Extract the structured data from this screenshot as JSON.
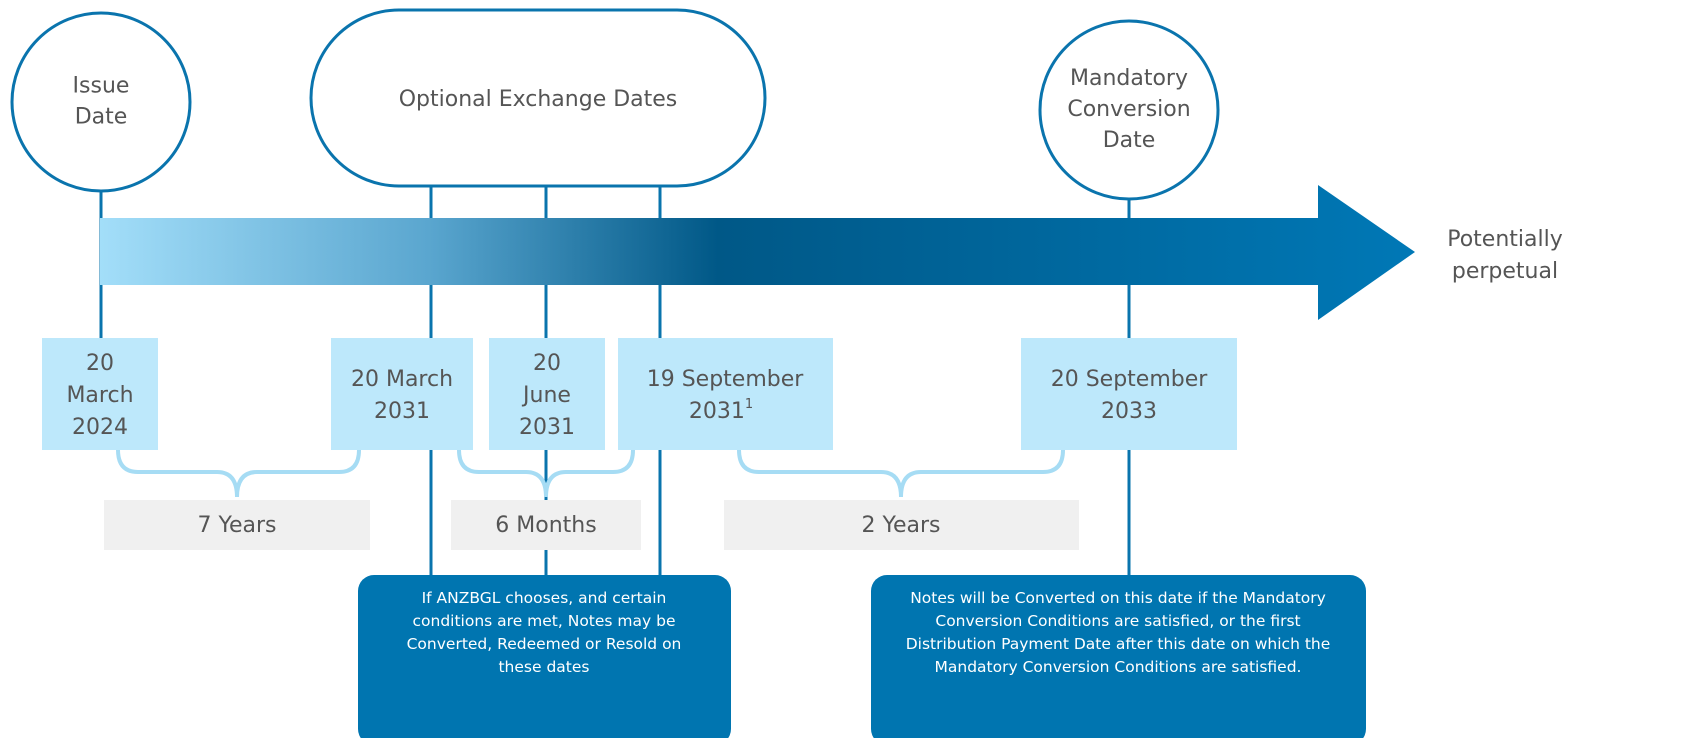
{
  "nodes": [
    {
      "lines": [
        "Issue",
        "Date"
      ]
    },
    {
      "lines": [
        "Optional Exchange Dates"
      ]
    },
    {
      "lines": [
        "Mandatory",
        "Conversion",
        "Date"
      ]
    }
  ],
  "end_label": {
    "lines": [
      "Potentially",
      "perpetual"
    ]
  },
  "dates": [
    {
      "lines": [
        "20",
        "March",
        "2024"
      ]
    },
    {
      "lines": [
        "20 March",
        "2031"
      ]
    },
    {
      "lines": [
        "20",
        "June",
        "2031"
      ]
    },
    {
      "lines": [
        "19 September",
        "2031"
      ],
      "footnote": "1"
    },
    {
      "lines": [
        "20 September",
        "2033"
      ]
    }
  ],
  "durations": [
    "7 Years",
    "6 Months",
    "2 Years"
  ],
  "notes": [
    {
      "lines": [
        "If ANZBGL chooses, and certain",
        "conditions are met, Notes may be",
        "Converted, Redeemed or Resold on",
        "these dates"
      ]
    },
    {
      "lines": [
        "Notes will be Converted on this date if the Mandatory",
        "Conversion Conditions are satisfied, or the first",
        "Distribution Payment Date after this date on which the",
        "Mandatory Conversion Conditions are satisfied."
      ]
    }
  ]
}
